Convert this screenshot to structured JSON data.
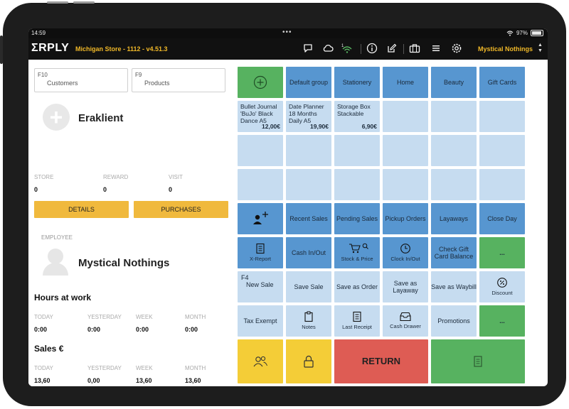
{
  "status_bar": {
    "time": "14:59",
    "dots": "•••",
    "battery": "97%"
  },
  "header": {
    "logo": "ΣRPLY",
    "store_title": "Michigan Store - 1112 - v4.51.3",
    "user_name": "Mystical Nothings",
    "icons": [
      "chat-icon",
      "cloud-icon",
      "wifi-signal-icon",
      "info-icon",
      "edit-icon",
      "briefcase-icon",
      "menu-icon",
      "settings-icon"
    ],
    "signal_label": "1"
  },
  "search": {
    "customers": {
      "key": "F10",
      "label": "Customers"
    },
    "products": {
      "key": "F9",
      "label": "Products"
    }
  },
  "customer": {
    "name": "Eraklient",
    "stats": [
      {
        "label": "STORE",
        "value": "0"
      },
      {
        "label": "REWARD",
        "value": "0"
      },
      {
        "label": "VISIT",
        "value": "0"
      }
    ],
    "details_label": "DETAILS",
    "purchases_label": "PURCHASES"
  },
  "employee": {
    "label": "EMPLOYEE",
    "name": "Mystical Nothings",
    "hours_title": "Hours at work",
    "hours": [
      {
        "label": "TODAY",
        "value": "0:00"
      },
      {
        "label": "YESTERDAY",
        "value": "0:00"
      },
      {
        "label": "WEEK",
        "value": "0:00"
      },
      {
        "label": "MONTH",
        "value": "0:00"
      }
    ],
    "sales_title": "Sales €",
    "sales": [
      {
        "label": "TODAY",
        "value": "13,60"
      },
      {
        "label": "YESTERDAY",
        "value": "0,00"
      },
      {
        "label": "WEEK",
        "value": "13,60"
      },
      {
        "label": "MONTH",
        "value": "13,60"
      }
    ]
  },
  "groups": {
    "add_icon": "plus-circle-icon",
    "items": [
      "Default group",
      "Stationery",
      "Home",
      "Beauty",
      "Gift Cards"
    ]
  },
  "products": [
    {
      "name": "Bullet Journal 'BuJo' Black Dance A5",
      "price": "12,00€"
    },
    {
      "name": "Date Planner 18 Months Daily A5",
      "price": "19,90€"
    },
    {
      "name": "Storage Box Stackable",
      "price": "6,90€"
    }
  ],
  "actions": {
    "row5": [
      "",
      "Recent Sales",
      "Pending Sales",
      "Pickup Orders",
      "Layaways",
      "Close Day"
    ],
    "row6": [
      "X-Report",
      "Cash In/Out",
      "Stock & Price",
      "Clock In/Out",
      "Check Gift Card Balance",
      "..."
    ],
    "row7": [
      "New Sale",
      "Save Sale",
      "Save as Order",
      "Save as Layaway",
      "Save as Waybill",
      "Discount"
    ],
    "row7_key": "F4",
    "row8": [
      "Tax Exempt",
      "Notes",
      "Last Receipt",
      "Cash Drawer",
      "Promotions",
      "..."
    ],
    "return_label": "RETURN"
  },
  "colors": {
    "blue": "#5796d0",
    "light_blue": "#c6dcf0",
    "green": "#57b260",
    "yellow": "#f4cd37",
    "red": "#de5c54",
    "accent": "#f0b828"
  }
}
